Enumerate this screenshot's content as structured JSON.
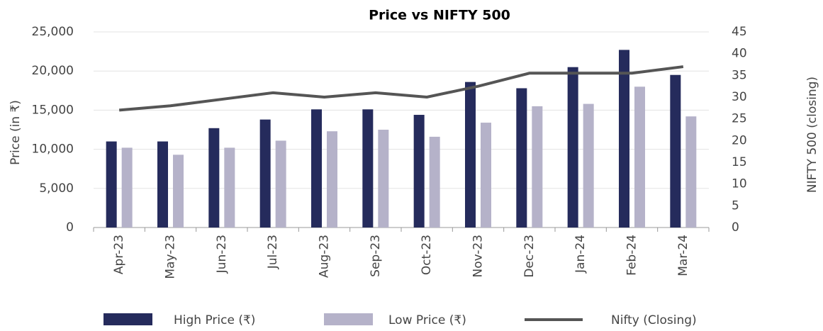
{
  "chart_data": {
    "type": "bar_line",
    "title": "Price vs NIFTY 500",
    "y_label": "Price (in ₹)",
    "y2_label": "NIFTY 500 (closing)",
    "categories": [
      "Apr-23",
      "May-23",
      "Jun-23",
      "Jul-23",
      "Aug-23",
      "Sep-23",
      "Oct-23",
      "Nov-23",
      "Dec-23",
      "Jan-24",
      "Feb-24",
      "Mar-24"
    ],
    "series": [
      {
        "name": "High Price (₹)",
        "color": "#252b5c",
        "type": "bar",
        "values": [
          11000,
          11000,
          12700,
          13800,
          15100,
          15100,
          14400,
          18600,
          17800,
          20500,
          22700,
          19500
        ]
      },
      {
        "name": "Low Price (₹)",
        "color": "#b5b2c9",
        "type": "bar",
        "values": [
          10200,
          9300,
          10200,
          11100,
          12300,
          12500,
          11600,
          13400,
          15500,
          15800,
          18000,
          14200
        ]
      },
      {
        "name": "Nifty (Closing)",
        "color": "#555555",
        "type": "line",
        "axis": "y2",
        "values": [
          27,
          28,
          29.5,
          31,
          30,
          31,
          30,
          32.5,
          35.5,
          35.5,
          35.5,
          37
        ]
      }
    ],
    "ylim": [
      0,
      25000
    ],
    "yticks": [
      0,
      {
        "value": 5000,
        "label": "5,000"
      },
      {
        "value": 10000,
        "label": "10,000"
      },
      {
        "value": 15000,
        "label": "15,000"
      },
      {
        "value": 20000,
        "label": "20,000"
      },
      {
        "value": 25000,
        "label": "25,000"
      }
    ],
    "y2lim": [
      0,
      45
    ],
    "y2ticks": [
      0,
      5,
      10,
      15,
      20,
      25,
      30,
      35,
      40,
      45
    ],
    "grid": true
  }
}
